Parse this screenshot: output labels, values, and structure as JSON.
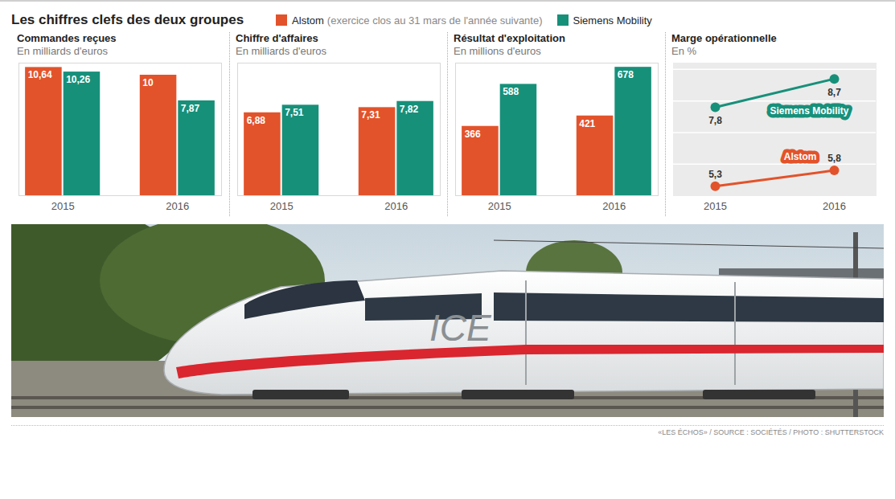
{
  "title": "Les chiffres clefs des deux groupes",
  "legend_note": "(exercice clos au 31 mars de l'année suivante)",
  "chart_data": [
    {
      "type": "bar",
      "title": "Commandes reçues",
      "subtitle": "En milliards d'euros",
      "categories": [
        "2015",
        "2016"
      ],
      "series": [
        {
          "name": "Alstom",
          "color": "#e2532b",
          "values": [
            10.64,
            10
          ],
          "value_labels": [
            "10,64",
            "10"
          ]
        },
        {
          "name": "Siemens Mobility",
          "color": "#17907a",
          "values": [
            10.26,
            7.87
          ],
          "value_labels": [
            "10,26",
            "7,87"
          ]
        }
      ],
      "ylim": [
        0,
        11
      ],
      "data_labels": true,
      "tick_labels": "x",
      "legend": "top"
    },
    {
      "type": "bar",
      "title": "Chiffre d'affaires",
      "subtitle": "En milliards d'euros",
      "categories": [
        "2015",
        "2016"
      ],
      "series": [
        {
          "name": "Alstom",
          "color": "#e2532b",
          "values": [
            6.88,
            7.31
          ],
          "value_labels": [
            "6,88",
            "7,31"
          ]
        },
        {
          "name": "Siemens Mobility",
          "color": "#17907a",
          "values": [
            7.51,
            7.82
          ],
          "value_labels": [
            "7,51",
            "7,82"
          ]
        }
      ],
      "ylim": [
        0,
        11
      ],
      "data_labels": true,
      "tick_labels": "x"
    },
    {
      "type": "bar",
      "title": "Résultat d'exploitation",
      "subtitle": "En millions d'euros",
      "categories": [
        "2015",
        "2016"
      ],
      "series": [
        {
          "name": "Alstom",
          "color": "#e2532b",
          "values": [
            366,
            421
          ]
        },
        {
          "name": "Siemens Mobility",
          "color": "#17907a",
          "values": [
            588,
            678
          ]
        }
      ],
      "ylim": [
        0,
        700
      ],
      "data_labels": true,
      "tick_labels": "x"
    },
    {
      "type": "line",
      "title": "Marge opérationnelle",
      "subtitle": "En %",
      "categories": [
        "2015",
        "2016"
      ],
      "series": [
        {
          "name": "Alstom",
          "color": "#e2532b",
          "values": [
            5.3,
            5.8
          ],
          "value_labels": [
            "5,3",
            "5,8"
          ]
        },
        {
          "name": "Siemens Mobility",
          "color": "#17907a",
          "values": [
            7.8,
            8.7
          ],
          "value_labels": [
            "7,8",
            "8,7"
          ]
        }
      ],
      "ylim": [
        5,
        9.2
      ],
      "yticks": [
        6,
        7,
        8,
        9
      ],
      "grid": true,
      "marker": "circle",
      "data_labels": true,
      "tick_labels": "x"
    }
  ],
  "photo_text": "ICE",
  "credit": "«LES ÉCHOS» / SOURCE : SOCIÉTÉS / PHOTO : SHUTTERSTOCK"
}
